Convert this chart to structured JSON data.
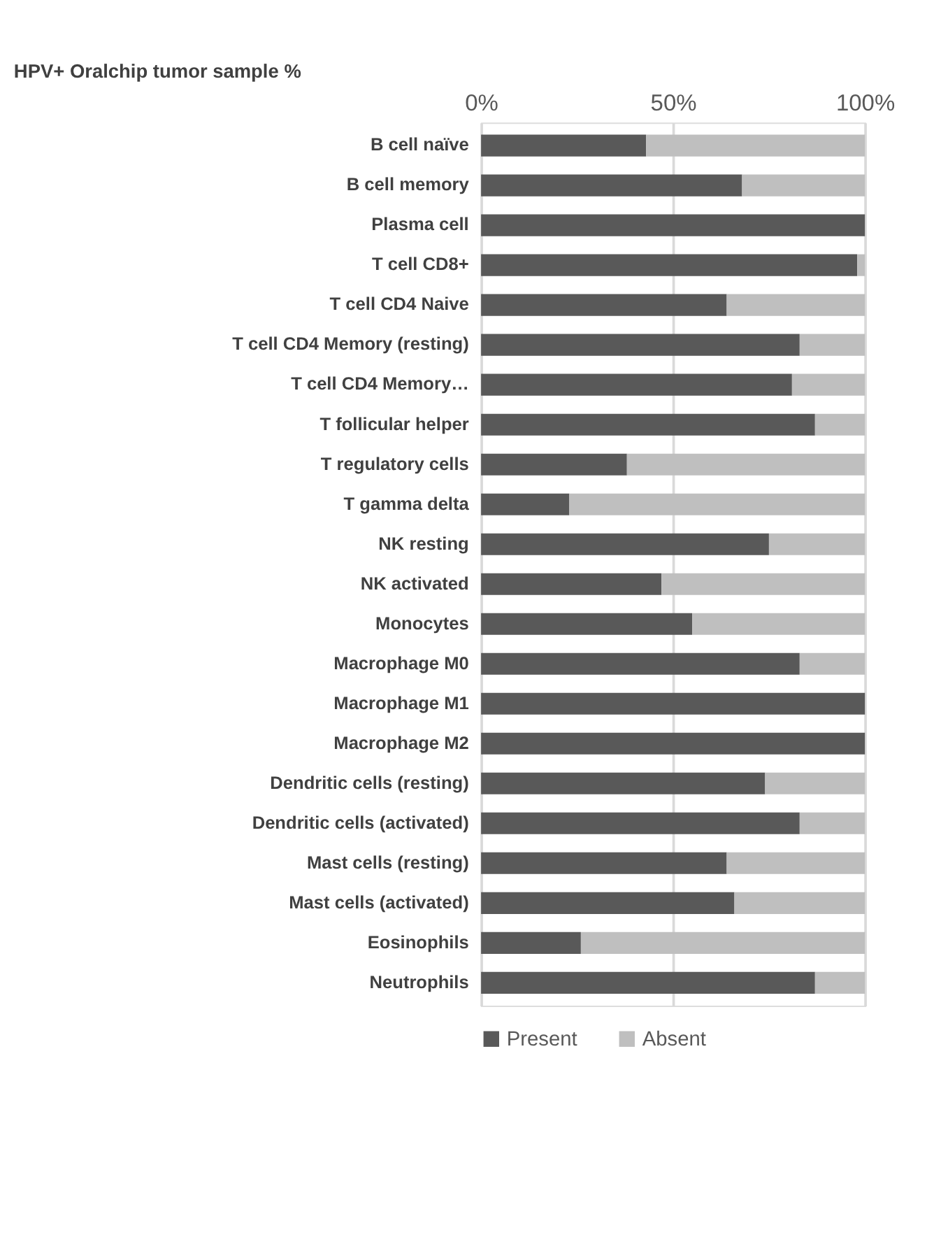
{
  "chart_data": {
    "type": "bar",
    "orientation": "horizontal",
    "stacked": true,
    "title": "HPV+ Oralchip tumor sample %",
    "categories": [
      "B cell naïve",
      "B cell memory",
      "Plasma cell",
      "T cell CD8+",
      "T cell CD4 Naive",
      "T cell CD4 Memory (resting)",
      "T cell CD4 Memory…",
      "T follicular helper",
      "T regulatory cells",
      "T gamma delta",
      "NK resting",
      "NK activated",
      "Monocytes",
      "Macrophage M0",
      "Macrophage M1",
      "Macrophage M2",
      "Dendritic cells (resting)",
      "Dendritic cells (activated)",
      "Mast cells (resting)",
      "Mast cells (activated)",
      "Eosinophils",
      "Neutrophils"
    ],
    "series": [
      {
        "name": "Present",
        "color": "#595959",
        "values": [
          43,
          68,
          100,
          98,
          64,
          83,
          81,
          87,
          38,
          23,
          75,
          47,
          55,
          83,
          100,
          100,
          74,
          83,
          64,
          66,
          26,
          87
        ]
      },
      {
        "name": "Absent",
        "color": "#bfbfbf",
        "values": [
          57,
          32,
          0,
          2,
          36,
          17,
          19,
          13,
          62,
          77,
          25,
          53,
          45,
          17,
          0,
          0,
          26,
          17,
          36,
          34,
          74,
          13
        ]
      }
    ],
    "xlim": [
      0,
      100
    ],
    "xticks": [
      {
        "value": 0,
        "label": "0%"
      },
      {
        "value": 50,
        "label": "50%"
      },
      {
        "value": 100,
        "label": "100%"
      }
    ],
    "grid": "x",
    "legend": "bottom"
  }
}
